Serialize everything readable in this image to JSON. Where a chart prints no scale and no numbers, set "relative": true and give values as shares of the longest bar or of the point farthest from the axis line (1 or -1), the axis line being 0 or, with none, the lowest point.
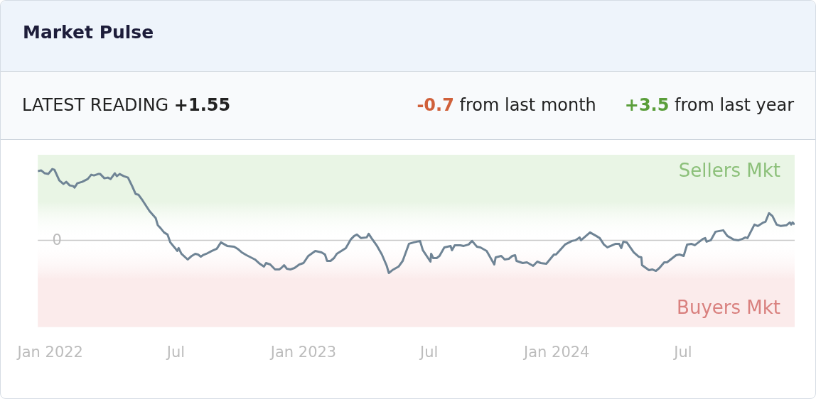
{
  "chart_data": {
    "type": "line",
    "title": "Market Pulse",
    "annotations": [
      "LATEST READING +1.55",
      "-0.7 from last month",
      "+3.5 from last year"
    ],
    "relative": true,
    "xlim": [
      "2021-12-14",
      "2024-12-09"
    ],
    "xticks": [
      {
        "value": "2022-01-01",
        "label": "Jan 2022"
      },
      {
        "value": "2022-07-01",
        "label": "Jul"
      },
      {
        "value": "2023-01-01",
        "label": "Jan 2023"
      },
      {
        "value": "2023-07-01",
        "label": "Jul"
      },
      {
        "value": "2024-01-01",
        "label": "Jan 2024"
      },
      {
        "value": "2024-07-01",
        "label": "Jul"
      }
    ],
    "grid": false,
    "legend": false,
    "ref_lines": [
      {
        "axis": "y",
        "value": 0,
        "label": "0",
        "color": "#c8c8c8"
      }
    ],
    "bands": [
      {
        "axis": "y",
        "from": 0,
        "to": 1.2,
        "label": "Sellers Mkt",
        "color": "#e9f5e5"
      },
      {
        "axis": "y",
        "from": -1.22,
        "to": 0,
        "label": "Buyers Mkt",
        "color": "#fbebeb"
      }
    ],
    "series": [
      {
        "color": "#6f8495",
        "x": [
          "2021-12-14",
          "2021-12-19",
          "2021-12-24",
          "2021-12-29",
          "2022-01-04",
          "2022-01-07",
          "2022-01-14",
          "2022-01-20",
          "2022-01-24",
          "2022-01-29",
          "2022-02-03",
          "2022-02-05",
          "2022-02-09",
          "2022-02-16",
          "2022-02-24",
          "2022-03-01",
          "2022-03-05",
          "2022-03-11",
          "2022-03-14",
          "2022-03-20",
          "2022-03-25",
          "2022-03-29",
          "2022-04-04",
          "2022-04-07",
          "2022-04-11",
          "2022-04-17",
          "2022-04-23",
          "2022-04-29",
          "2022-05-04",
          "2022-05-08",
          "2022-05-14",
          "2022-05-24",
          "2022-06-02",
          "2022-06-05",
          "2022-06-09",
          "2022-06-14",
          "2022-06-19",
          "2022-06-23",
          "2022-06-29",
          "2022-07-03",
          "2022-07-05",
          "2022-07-09",
          "2022-07-18",
          "2022-07-24",
          "2022-07-29",
          "2022-08-02",
          "2022-08-06",
          "2022-08-09",
          "2022-08-14",
          "2022-08-22",
          "2022-08-29",
          "2022-09-04",
          "2022-09-13",
          "2022-09-23",
          "2022-09-28",
          "2022-10-04",
          "2022-10-11",
          "2022-10-23",
          "2022-10-30",
          "2022-11-05",
          "2022-11-08",
          "2022-11-14",
          "2022-11-21",
          "2022-11-27",
          "2022-11-30",
          "2022-12-04",
          "2022-12-08",
          "2022-12-13",
          "2022-12-19",
          "2022-12-26",
          "2023-01-01",
          "2023-01-08",
          "2023-01-18",
          "2023-01-27",
          "2023-02-01",
          "2023-02-04",
          "2023-02-09",
          "2023-02-14",
          "2023-02-18",
          "2023-03-03",
          "2023-03-10",
          "2023-03-15",
          "2023-03-19",
          "2023-03-25",
          "2023-04-02",
          "2023-04-05",
          "2023-04-09",
          "2023-04-17",
          "2023-04-24",
          "2023-05-01",
          "2023-05-04",
          "2023-05-09",
          "2023-05-18",
          "2023-05-24",
          "2023-06-02",
          "2023-06-09",
          "2023-06-18",
          "2023-06-22",
          "2023-07-03",
          "2023-07-04",
          "2023-07-07",
          "2023-07-12",
          "2023-07-16",
          "2023-07-23",
          "2023-08-01",
          "2023-08-03",
          "2023-08-07",
          "2023-08-15",
          "2023-08-20",
          "2023-08-27",
          "2023-09-01",
          "2023-09-08",
          "2023-09-13",
          "2023-09-22",
          "2023-10-03",
          "2023-10-05",
          "2023-10-13",
          "2023-10-18",
          "2023-10-24",
          "2023-10-29",
          "2023-11-02",
          "2023-11-04",
          "2023-11-13",
          "2023-11-19",
          "2023-11-28",
          "2023-12-04",
          "2023-12-09",
          "2023-12-17",
          "2023-12-28",
          "2023-12-31",
          "2024-01-13",
          "2024-01-23",
          "2024-01-28",
          "2024-02-03",
          "2024-02-05",
          "2024-02-18",
          "2024-02-27",
          "2024-03-03",
          "2024-03-09",
          "2024-03-14",
          "2024-03-26",
          "2024-03-31",
          "2024-04-03",
          "2024-04-06",
          "2024-04-11",
          "2024-04-21",
          "2024-04-28",
          "2024-05-02",
          "2024-05-03",
          "2024-05-13",
          "2024-05-18",
          "2024-05-23",
          "2024-05-28",
          "2024-06-04",
          "2024-06-08",
          "2024-06-21",
          "2024-06-26",
          "2024-07-02",
          "2024-07-07",
          "2024-07-13",
          "2024-07-18",
          "2024-07-30",
          "2024-08-02",
          "2024-08-04",
          "2024-08-10",
          "2024-08-17",
          "2024-08-28",
          "2024-09-03",
          "2024-09-12",
          "2024-09-19",
          "2024-09-25",
          "2024-09-29",
          "2024-10-02",
          "2024-10-12",
          "2024-10-17",
          "2024-10-25",
          "2024-10-28",
          "2024-11-02",
          "2024-11-07",
          "2024-11-13",
          "2024-11-19",
          "2024-11-27",
          "2024-12-02",
          "2024-12-04",
          "2024-12-06",
          "2024-12-09"
        ],
        "values": [
          0.97,
          0.98,
          0.94,
          0.93,
          1.0,
          0.99,
          0.84,
          0.79,
          0.82,
          0.77,
          0.76,
          0.74,
          0.8,
          0.82,
          0.86,
          0.92,
          0.91,
          0.93,
          0.93,
          0.87,
          0.88,
          0.86,
          0.94,
          0.9,
          0.93,
          0.9,
          0.88,
          0.76,
          0.65,
          0.64,
          0.56,
          0.41,
          0.31,
          0.21,
          0.17,
          0.11,
          0.08,
          -0.03,
          -0.1,
          -0.15,
          -0.11,
          -0.19,
          -0.27,
          -0.22,
          -0.19,
          -0.2,
          -0.23,
          -0.21,
          -0.19,
          -0.15,
          -0.12,
          -0.03,
          -0.08,
          -0.09,
          -0.12,
          -0.17,
          -0.21,
          -0.27,
          -0.33,
          -0.37,
          -0.32,
          -0.34,
          -0.41,
          -0.41,
          -0.39,
          -0.35,
          -0.4,
          -0.41,
          -0.39,
          -0.34,
          -0.32,
          -0.22,
          -0.15,
          -0.17,
          -0.2,
          -0.29,
          -0.29,
          -0.25,
          -0.19,
          -0.11,
          0.01,
          0.06,
          0.08,
          0.03,
          0.04,
          0.09,
          0.03,
          -0.08,
          -0.2,
          -0.36,
          -0.46,
          -0.42,
          -0.37,
          -0.29,
          -0.05,
          -0.03,
          -0.01,
          -0.14,
          -0.3,
          -0.19,
          -0.25,
          -0.25,
          -0.22,
          -0.1,
          -0.08,
          -0.14,
          -0.07,
          -0.07,
          -0.08,
          -0.06,
          -0.01,
          -0.09,
          -0.1,
          -0.15,
          -0.34,
          -0.24,
          -0.22,
          -0.27,
          -0.26,
          -0.22,
          -0.21,
          -0.29,
          -0.32,
          -0.31,
          -0.36,
          -0.3,
          -0.32,
          -0.33,
          -0.2,
          -0.2,
          -0.06,
          -0.01,
          0.0,
          0.04,
          0.0,
          0.11,
          0.06,
          0.03,
          -0.06,
          -0.1,
          -0.05,
          -0.05,
          -0.11,
          -0.02,
          -0.03,
          -0.17,
          -0.23,
          -0.24,
          -0.35,
          -0.42,
          -0.41,
          -0.43,
          -0.39,
          -0.31,
          -0.31,
          -0.21,
          -0.2,
          -0.22,
          -0.06,
          -0.05,
          -0.07,
          0.02,
          0.03,
          -0.02,
          0.0,
          0.12,
          0.14,
          0.06,
          0.01,
          0.0,
          0.02,
          0.04,
          0.03,
          0.22,
          0.2,
          0.25,
          0.26,
          0.38,
          0.34,
          0.22,
          0.2,
          0.21,
          0.25,
          0.22,
          0.25,
          0.22
        ]
      }
    ]
  }
}
